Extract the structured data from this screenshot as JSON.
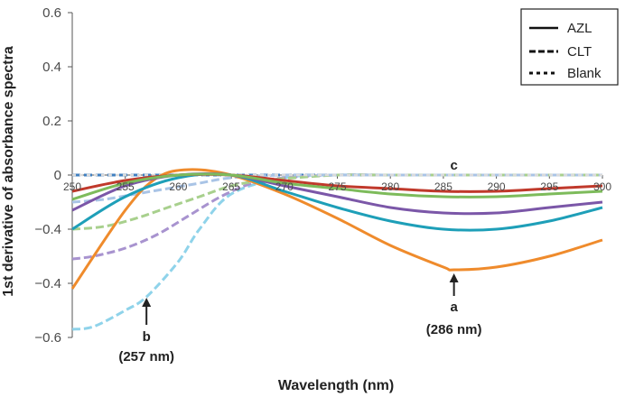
{
  "chart_data": {
    "type": "line",
    "title": "",
    "xlabel": "Wavelength (nm)",
    "ylabel": "1st derivative of absorbance spectra",
    "xlim": [
      250,
      300
    ],
    "ylim": [
      -0.6,
      0.6
    ],
    "x_ticks": [
      "250",
      "255",
      "260",
      "265",
      "270",
      "275",
      "280",
      "285",
      "290",
      "295",
      "300"
    ],
    "y_ticks": [
      "0.6",
      "0.4",
      "0.2",
      "0",
      "−0.4",
      "−0.4",
      "−0.4",
      "−0.6"
    ],
    "legend": {
      "position": "top-right",
      "entries": [
        {
          "label": "AZL",
          "style": "solid"
        },
        {
          "label": "CLT",
          "style": "dashed"
        },
        {
          "label": "Blank",
          "style": "dotted"
        }
      ]
    },
    "series": [
      {
        "style": "solid",
        "color": "#ef8b2c",
        "x": [
          250,
          255,
          258,
          261,
          265,
          270,
          275,
          280,
          285,
          286,
          290,
          295,
          300
        ],
        "y": [
          -0.42,
          -0.13,
          -0.01,
          0.02,
          0.0,
          -0.07,
          -0.16,
          -0.26,
          -0.34,
          -0.35,
          -0.34,
          -0.3,
          -0.24
        ]
      },
      {
        "style": "solid",
        "color": "#1e9fb8",
        "x": [
          250,
          255,
          260,
          265,
          270,
          275,
          280,
          285,
          290,
          295,
          300
        ],
        "y": [
          -0.2,
          -0.08,
          -0.01,
          0.0,
          -0.06,
          -0.12,
          -0.17,
          -0.2,
          -0.2,
          -0.17,
          -0.12
        ]
      },
      {
        "style": "solid",
        "color": "#7b57a8",
        "x": [
          250,
          255,
          260,
          265,
          270,
          275,
          280,
          285,
          290,
          295,
          300
        ],
        "y": [
          -0.13,
          -0.04,
          0.0,
          0.0,
          -0.04,
          -0.08,
          -0.12,
          -0.14,
          -0.14,
          -0.12,
          -0.1
        ]
      },
      {
        "style": "solid",
        "color": "#c0392b",
        "x": [
          250,
          255,
          260,
          265,
          270,
          275,
          280,
          285,
          290,
          295,
          300
        ],
        "y": [
          -0.06,
          -0.02,
          0.0,
          0.0,
          -0.02,
          -0.04,
          -0.05,
          -0.06,
          -0.06,
          -0.05,
          -0.04
        ]
      },
      {
        "style": "solid",
        "color": "#7dbb5b",
        "x": [
          250,
          255,
          260,
          265,
          270,
          275,
          280,
          285,
          290,
          295,
          300
        ],
        "y": [
          -0.09,
          -0.03,
          0.0,
          0.0,
          -0.03,
          -0.05,
          -0.07,
          -0.08,
          -0.08,
          -0.07,
          -0.06
        ]
      },
      {
        "style": "dashed",
        "color": "#3f7fc0",
        "x": [
          250,
          260,
          270,
          280,
          290,
          300
        ],
        "y": [
          0.0,
          0.0,
          0.0,
          0.0,
          0.0,
          0.0
        ]
      },
      {
        "style": "dashed",
        "color": "#8fd3ea",
        "x": [
          250,
          252,
          255,
          257,
          260,
          262,
          265,
          270,
          275,
          280,
          285,
          290,
          295,
          300
        ],
        "y": [
          -0.57,
          -0.56,
          -0.5,
          -0.45,
          -0.32,
          -0.2,
          -0.07,
          -0.01,
          0.0,
          0.0,
          0.0,
          0.0,
          0.0,
          0.0
        ]
      },
      {
        "style": "dashed",
        "color": "#a893cf",
        "x": [
          250,
          252,
          255,
          258,
          261,
          264,
          267,
          270,
          275,
          280,
          290,
          300
        ],
        "y": [
          -0.31,
          -0.3,
          -0.27,
          -0.22,
          -0.15,
          -0.08,
          -0.03,
          -0.01,
          0.0,
          0.0,
          0.0,
          0.0
        ]
      },
      {
        "style": "dashed",
        "color": "#a8d08d",
        "x": [
          250,
          253,
          256,
          259,
          262,
          265,
          268,
          271,
          275,
          280,
          290,
          300
        ],
        "y": [
          -0.2,
          -0.19,
          -0.16,
          -0.12,
          -0.08,
          -0.04,
          -0.02,
          -0.01,
          0.0,
          0.0,
          0.0,
          0.0
        ]
      },
      {
        "style": "dashed",
        "color": "#a9c4e6",
        "x": [
          250,
          253,
          256,
          259,
          262,
          265,
          270,
          275,
          280,
          290,
          300
        ],
        "y": [
          -0.1,
          -0.09,
          -0.07,
          -0.05,
          -0.03,
          -0.01,
          0.0,
          0.0,
          0.0,
          0.0,
          0.0
        ]
      },
      {
        "style": "dotted",
        "color": "#dadada",
        "x": [
          250,
          260,
          270,
          280,
          290,
          300
        ],
        "y": [
          0.0,
          0.0,
          0.0,
          0.0,
          0.0,
          0.0
        ]
      }
    ],
    "annotations": [
      {
        "label": "a",
        "value_label": "(286 nm)",
        "x": 286,
        "y": -0.35
      },
      {
        "label": "b",
        "value_label": "(257 nm)",
        "x": 257,
        "y": -0.45
      },
      {
        "label": "c",
        "value_label": "",
        "x": 286,
        "y": 0.0
      }
    ]
  }
}
